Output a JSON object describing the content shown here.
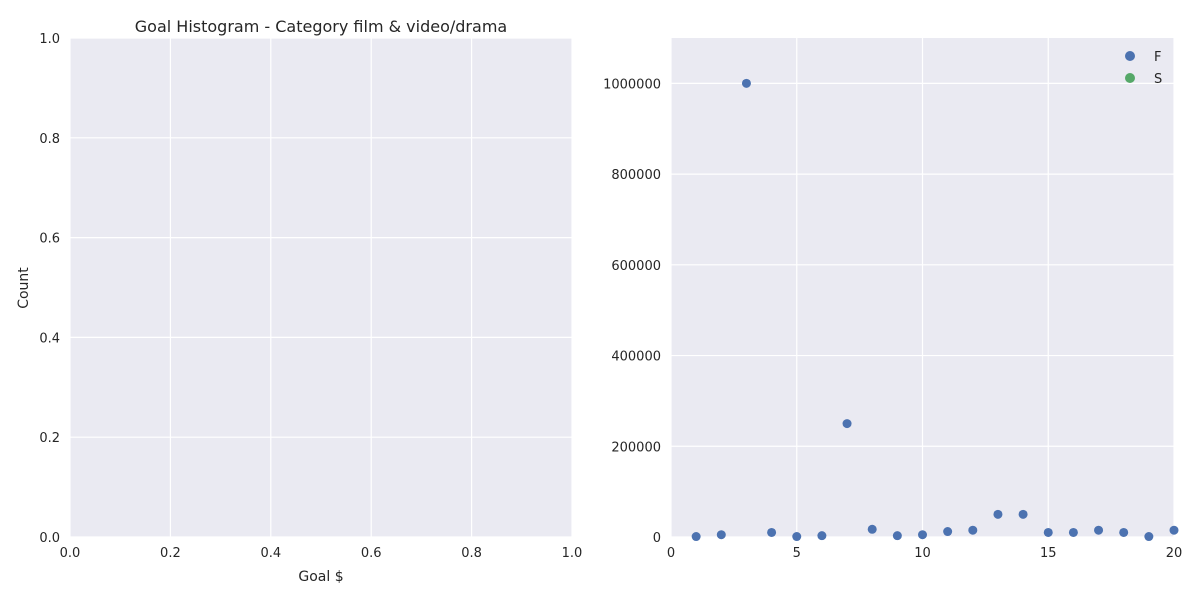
{
  "chart_data": [
    {
      "type": "bar",
      "title": "Goal Histogram - Category film & video/drama",
      "xlabel": "Goal $",
      "ylabel": "Count",
      "xlim": [
        0,
        1
      ],
      "ylim": [
        0,
        1
      ],
      "x_ticks": [
        "0.0",
        "0.2",
        "0.4",
        "0.6",
        "0.8",
        "1.0"
      ],
      "y_ticks": [
        "0.0",
        "0.2",
        "0.4",
        "0.6",
        "0.8",
        "1.0"
      ],
      "grid": true,
      "values": []
    },
    {
      "type": "scatter",
      "xlim": [
        0,
        20
      ],
      "ylim": [
        0,
        1100000
      ],
      "x_ticks": [
        "0",
        "5",
        "10",
        "15",
        "20"
      ],
      "y_ticks": [
        "0",
        "200000",
        "400000",
        "600000",
        "800000",
        "1000000"
      ],
      "grid": true,
      "legend_position": "top-right",
      "series": [
        {
          "name": "F",
          "color": "#4c72b0",
          "x": [
            1,
            2,
            3,
            4,
            5,
            6,
            7,
            8,
            9,
            10,
            11,
            12,
            13,
            14,
            15,
            16,
            17,
            18,
            19,
            20
          ],
          "y": [
            1000,
            5000,
            1000000,
            10000,
            1000,
            3000,
            250000,
            17000,
            3000,
            5000,
            12000,
            15000,
            50000,
            50000,
            10000,
            10000,
            15000,
            10000,
            1000,
            15000
          ]
        },
        {
          "name": "S",
          "color": "#55a868",
          "x": [],
          "y": []
        }
      ]
    }
  ],
  "colors": {
    "axes_bg": "#eaeaf2",
    "grid": "#ffffff",
    "text": "#262626"
  }
}
